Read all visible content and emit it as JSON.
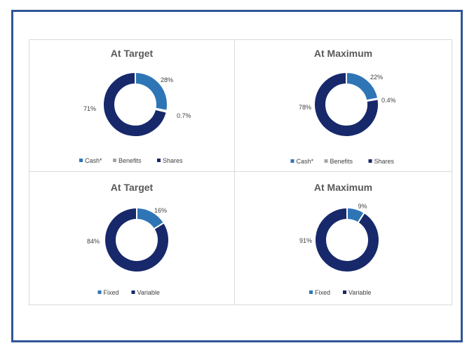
{
  "colors": {
    "frame": "#2f5597",
    "panel_border": "#d9d9d9",
    "light_blue": "#2e75b6",
    "gray": "#a6a6a6",
    "navy": "#17296b"
  },
  "chart_data": [
    {
      "type": "pie",
      "style": "doughnut",
      "title": "At Target",
      "legend_position": "bottom",
      "categories": [
        "Cash*",
        "Benefits",
        "Shares"
      ],
      "values": [
        28,
        0.7,
        71
      ],
      "labels": [
        "28%",
        "0.7%",
        "71%"
      ],
      "colors": [
        "#2e75b6",
        "#a6a6a6",
        "#17296b"
      ]
    },
    {
      "type": "pie",
      "style": "doughnut",
      "title": "At Maximum",
      "legend_position": "bottom",
      "categories": [
        "Cash*",
        "Benefits",
        "Shares"
      ],
      "values": [
        22,
        0.4,
        78
      ],
      "labels": [
        "22%",
        "0.4%",
        "78%"
      ],
      "colors": [
        "#2e75b6",
        "#a6a6a6",
        "#17296b"
      ]
    },
    {
      "type": "pie",
      "style": "doughnut",
      "title": "At Target",
      "legend_position": "bottom",
      "categories": [
        "Fixed",
        "Variable"
      ],
      "values": [
        16,
        84
      ],
      "labels": [
        "16%",
        "84%"
      ],
      "colors": [
        "#2e75b6",
        "#17296b"
      ]
    },
    {
      "type": "pie",
      "style": "doughnut",
      "title": "At Maximum",
      "legend_position": "bottom",
      "categories": [
        "Fixed",
        "Variable"
      ],
      "values": [
        9,
        91
      ],
      "labels": [
        "9%",
        "91%"
      ],
      "colors": [
        "#2e75b6",
        "#17296b"
      ]
    }
  ]
}
